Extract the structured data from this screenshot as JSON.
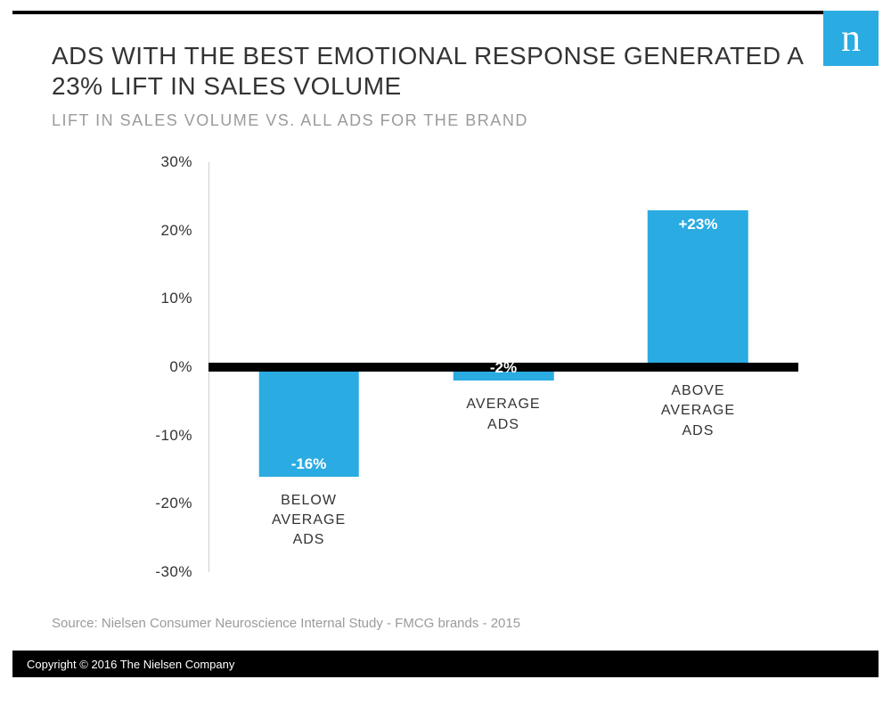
{
  "layout": {
    "bg": "#ffffff",
    "topbar_color": "#000000",
    "bottom_bar_bg": "#000000",
    "bottom_bar_text_color": "#ffffff",
    "axis_wall_color": "#cfcfcf"
  },
  "logo": {
    "glyph": "n",
    "bg": "#2aabe2",
    "color": "#ffffff",
    "fontsize": 44
  },
  "title": {
    "text": "ADS WITH THE BEST EMOTIONAL RESPONSE GENERATED A 23% LIFT IN SALES VOLUME",
    "color": "#333333",
    "fontsize": 28
  },
  "subtitle": {
    "text": "LIFT IN SALES VOLUME VS. ALL ADS FOR THE BRAND",
    "color": "#9b9b9b",
    "fontsize": 18
  },
  "chart": {
    "type": "bar",
    "ylim": [
      -30,
      30
    ],
    "ytick_step": 10,
    "yticks": [
      {
        "v": 30,
        "label": "30%"
      },
      {
        "v": 20,
        "label": "20%"
      },
      {
        "v": 10,
        "label": "10%"
      },
      {
        "v": 0,
        "label": "0%"
      },
      {
        "v": -10,
        "label": "-10%"
      },
      {
        "v": -20,
        "label": "-20%"
      },
      {
        "v": -30,
        "label": "-30%"
      }
    ],
    "ytick_fontsize": 17,
    "ytick_color": "#333333",
    "zero_line_color": "#000000",
    "zero_line_thickness": 10,
    "bar_color": "#2aabe2",
    "bar_width_pct": 17,
    "value_label_color": "#ffffff",
    "value_label_fontsize": 17,
    "cat_label_fontsize": 16,
    "cat_label_color": "#333333",
    "cat_label_top_offset_pct": 5,
    "bars": [
      {
        "x_pct": 17,
        "value": -16,
        "value_label": "-16%",
        "cat_label": "BELOW\nAVERAGE\nADS"
      },
      {
        "x_pct": 50,
        "value": -2,
        "value_label": "-2%",
        "cat_label": "AVERAGE\nADS"
      },
      {
        "x_pct": 83,
        "value": 23,
        "value_label": "+23%",
        "cat_label": "ABOVE\nAVERAGE\nADS"
      }
    ]
  },
  "source": {
    "text": "Source: Nielsen Consumer Neuroscience Internal Study - FMCG brands - 2015",
    "color": "#9b9b9b",
    "fontsize": 15
  },
  "copyright": {
    "text": "Copyright © 2016 The Nielsen Company",
    "fontsize": 13
  }
}
